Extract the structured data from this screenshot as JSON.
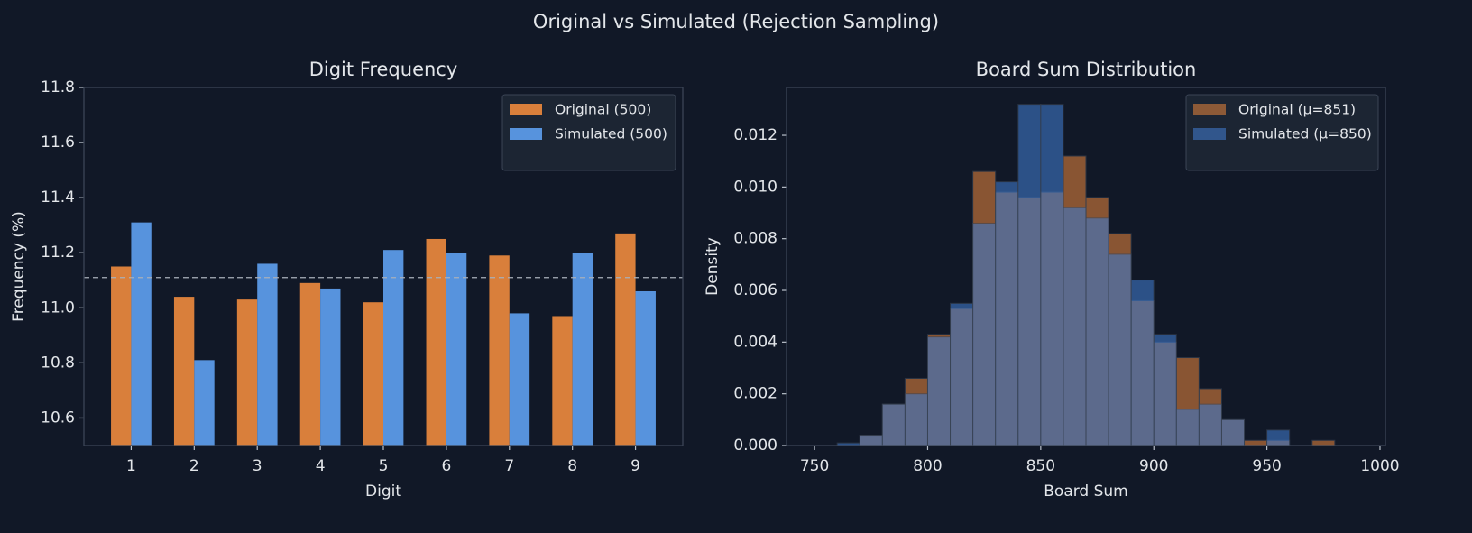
{
  "title": "Original vs Simulated (Rejection Sampling)",
  "chart_data": [
    {
      "type": "bar",
      "title": "Digit Frequency",
      "xlabel": "Digit",
      "ylabel": "Frequency (%)",
      "categories": [
        "1",
        "2",
        "3",
        "4",
        "5",
        "6",
        "7",
        "8",
        "9"
      ],
      "series": [
        {
          "name": "Original (500)",
          "color": "#d97f3b",
          "values": [
            11.15,
            11.04,
            11.03,
            11.09,
            11.02,
            11.25,
            11.19,
            10.97,
            11.27
          ]
        },
        {
          "name": "Simulated (500)",
          "color": "#5793dd",
          "values": [
            11.31,
            10.81,
            11.16,
            11.07,
            11.21,
            11.2,
            10.98,
            11.2,
            11.06
          ]
        }
      ],
      "hline": 11.11,
      "ylim": [
        10.5,
        11.8
      ],
      "yticks": [
        10.6,
        10.8,
        {
          "value": 11,
          "label": "11.0"
        },
        11.2,
        11.4,
        11.6,
        11.8
      ],
      "legend": "upper right"
    },
    {
      "type": "histogram",
      "title": "Board Sum Distribution",
      "xlabel": "Board Sum",
      "ylabel": "Density",
      "bins": [
        760,
        770,
        780,
        790,
        800,
        810,
        820,
        830,
        840,
        850,
        860,
        870,
        880,
        890,
        900,
        910,
        920,
        930,
        940,
        950,
        960,
        970,
        980
      ],
      "series": [
        {
          "name": "Original (μ=851)",
          "color": "#d97f3b",
          "values": [
            0,
            0.0004,
            0.0016,
            0.0026,
            0.0043,
            0.0053,
            0.0106,
            0.0098,
            0.0096,
            0.0098,
            0.0112,
            0.0096,
            0.0082,
            0.0056,
            0.004,
            0.0034,
            0.0022,
            0.001,
            0.0002,
            0.0002,
            0,
            0.0002
          ]
        },
        {
          "name": "Simulated (μ=850)",
          "color": "#3f78c8",
          "values": [
            0.0001,
            0.0004,
            0.0016,
            0.002,
            0.0042,
            0.0055,
            0.0086,
            0.0102,
            0.0132,
            0.0132,
            0.0092,
            0.0088,
            0.0074,
            0.0064,
            0.0043,
            0.0014,
            0.0016,
            0.001,
            0,
            0.0006,
            0,
            0
          ]
        }
      ],
      "xlim": [
        737.6,
        1002.4
      ],
      "xticks": [
        750,
        800,
        850,
        900,
        950,
        1000
      ],
      "ylim": [
        0,
        0.01385
      ],
      "yticks": [
        {
          "value": 0,
          "label": "0.000"
        },
        {
          "value": 0.002,
          "label": "0.002"
        },
        {
          "value": 0.004,
          "label": "0.004"
        },
        {
          "value": 0.006,
          "label": "0.006"
        },
        {
          "value": 0.008,
          "label": "0.008"
        },
        {
          "value": 0.01,
          "label": "0.010"
        },
        {
          "value": 0.012,
          "label": "0.012"
        }
      ],
      "legend": "upper right"
    }
  ]
}
